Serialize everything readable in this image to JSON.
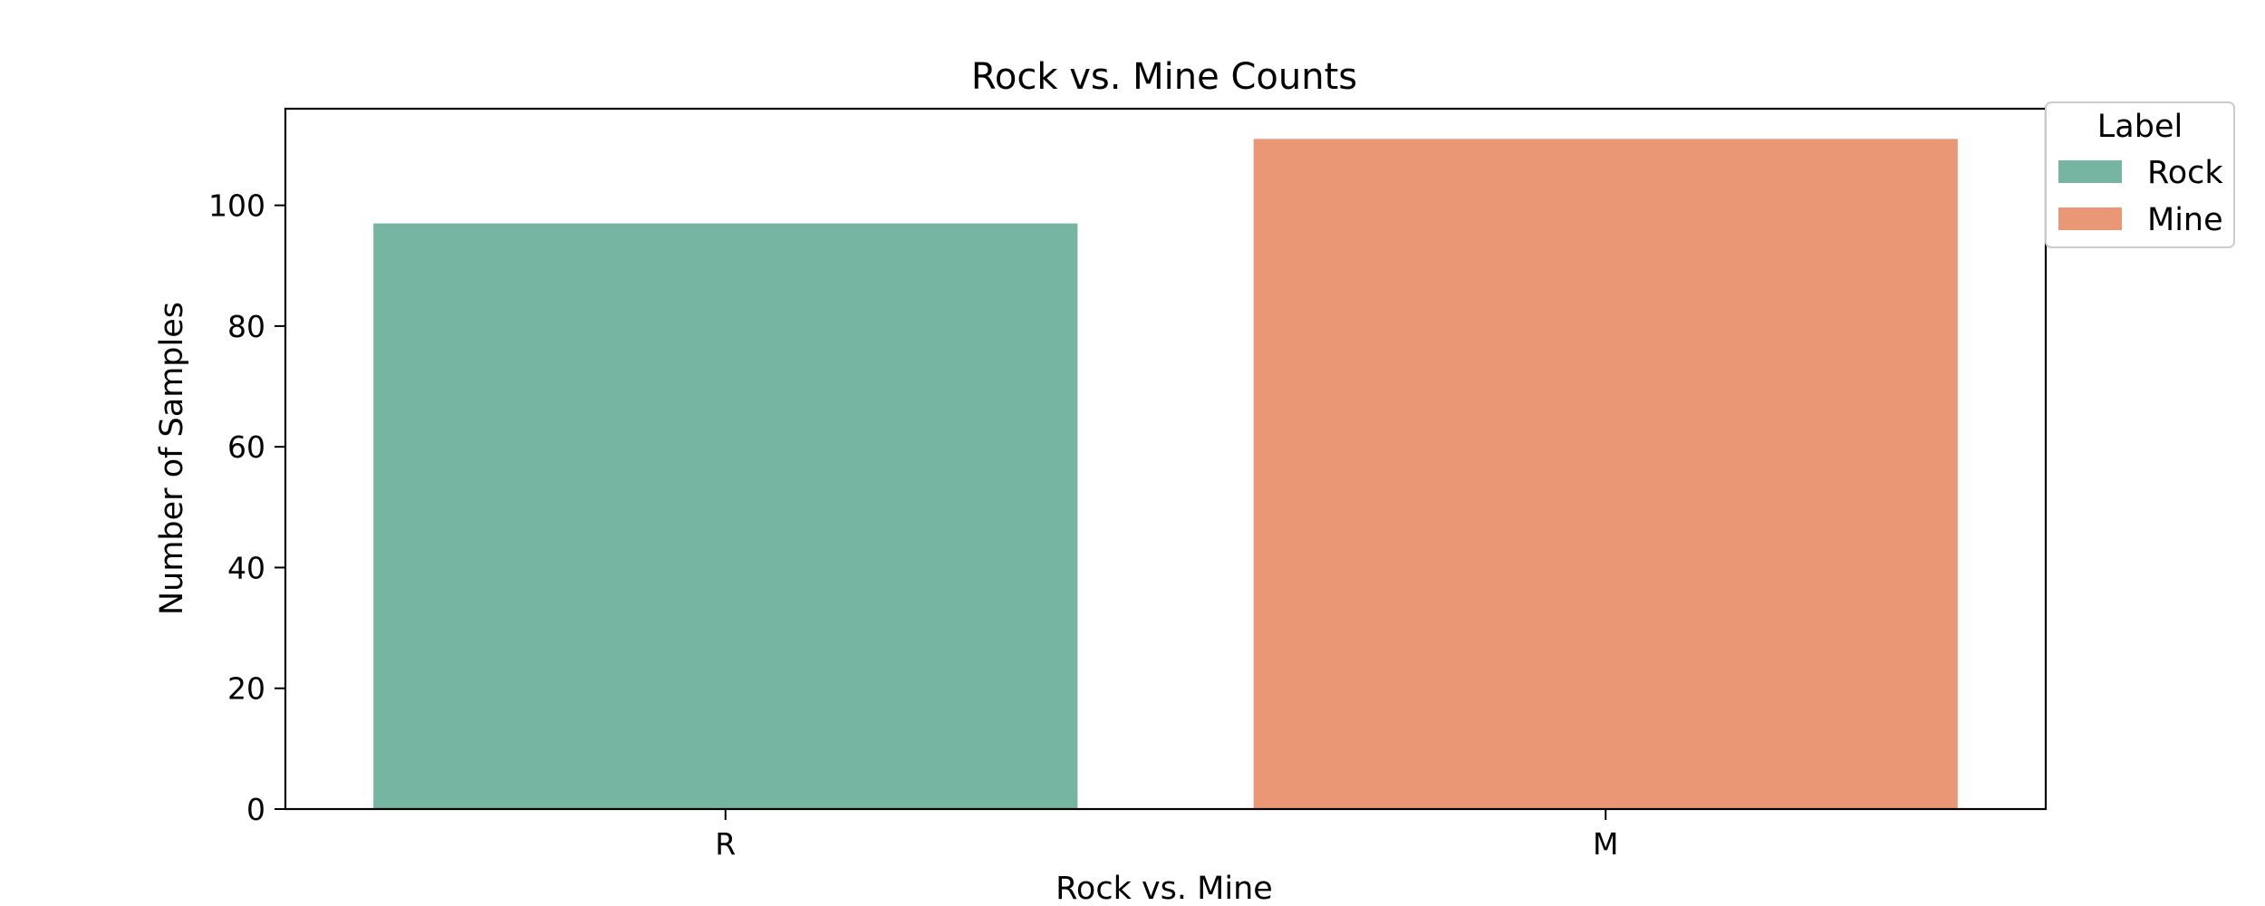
{
  "chart_data": {
    "type": "bar",
    "title": "Rock vs. Mine Counts",
    "xlabel": "Rock vs. Mine",
    "ylabel": "Number of Samples",
    "categories": [
      "R",
      "M"
    ],
    "values": [
      97,
      111
    ],
    "colors": [
      "#76b5a1",
      "#e99774"
    ],
    "ylim": [
      0,
      116
    ],
    "yticks": [
      0,
      20,
      40,
      60,
      80,
      100
    ],
    "grid": false,
    "legend": {
      "title": "Label",
      "placement": "upper-right-outside",
      "entries": [
        {
          "label": "Rock",
          "color": "#76b5a1"
        },
        {
          "label": "Mine",
          "color": "#e99774"
        }
      ]
    }
  }
}
